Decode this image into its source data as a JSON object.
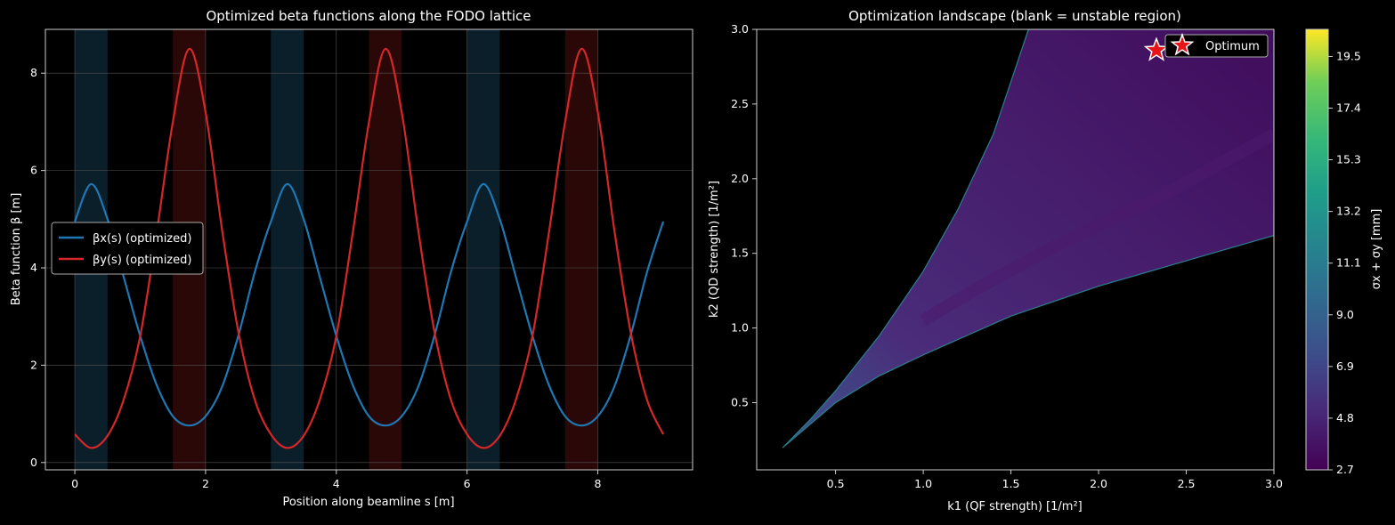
{
  "colors": {
    "background": "#000000",
    "beta_x": "#1f77b4",
    "beta_y": "#d62728",
    "qf_band": "#0b1f2a",
    "qd_band": "#2a0808",
    "grid": "#555555",
    "star": "#e8141a"
  },
  "chart_data": [
    {
      "type": "line",
      "title": "Optimized beta functions along the FODO lattice",
      "xlabel": "Position along beamline s [m]",
      "ylabel": "Beta function β [m]",
      "xlim": [
        -0.45,
        9.45
      ],
      "ylim": [
        -0.15,
        8.9
      ],
      "xticks": [
        0,
        2,
        4,
        6,
        8
      ],
      "yticks": [
        0,
        2,
        4,
        6,
        8
      ],
      "grid": true,
      "legend_position": "center-left",
      "cell_length": 3,
      "qf_regions": [
        [
          0,
          0.5
        ],
        [
          3,
          3.5
        ],
        [
          6,
          6.5
        ]
      ],
      "qd_regions": [
        [
          1.5,
          2.0
        ],
        [
          4.5,
          5.0
        ],
        [
          7.5,
          8.0
        ]
      ],
      "series": [
        {
          "name": "βx(s) (optimized)",
          "color": "#1f77b4",
          "x": [
            0,
            0.25,
            0.5,
            0.75,
            1.0,
            1.25,
            1.5,
            1.75,
            2.0,
            2.25,
            2.5,
            2.75,
            3.0
          ],
          "values": [
            4.95,
            5.72,
            5.0,
            3.8,
            2.6,
            1.6,
            0.95,
            0.76,
            0.95,
            1.55,
            2.6,
            3.9,
            4.95
          ]
        },
        {
          "name": "βy(s) (optimized)",
          "color": "#d62728",
          "x": [
            0,
            0.25,
            0.5,
            0.75,
            1.0,
            1.25,
            1.5,
            1.75,
            2.0,
            2.25,
            2.5,
            2.75,
            3.0
          ],
          "values": [
            0.58,
            0.3,
            0.55,
            1.3,
            2.6,
            4.7,
            7.0,
            8.5,
            7.2,
            4.8,
            2.7,
            1.3,
            0.58
          ]
        }
      ]
    },
    {
      "type": "heatmap",
      "title": "Optimization landscape (blank = unstable region)",
      "xlabel": "k1 (QF strength) [1/m²]",
      "ylabel": "k2 (QD strength) [1/m²]",
      "xlim": [
        0.05,
        3.0
      ],
      "ylim": [
        0.05,
        3.0
      ],
      "xticks": [
        "0.5",
        "1.0",
        "1.5",
        "2.0",
        "2.5",
        "3.0"
      ],
      "yticks": [
        "0.5",
        "1.0",
        "1.5",
        "2.0",
        "2.5",
        "3.0"
      ],
      "colorbar_label": "σx + σy [mm]",
      "colorbar_ticks": [
        "2.7",
        "4.8",
        "6.9",
        "9.0",
        "11.1",
        "13.2",
        "15.3",
        "17.4",
        "19.5"
      ],
      "colorbar_range": [
        2.7,
        20.6
      ],
      "stable_region_upper": {
        "k1": [
          0.2,
          0.35,
          0.5,
          0.75,
          1.0,
          1.2,
          1.4,
          1.5,
          1.6
        ],
        "k2": [
          0.2,
          0.38,
          0.58,
          0.95,
          1.38,
          1.8,
          2.3,
          2.65,
          3.0
        ]
      },
      "stable_region_lower": {
        "k1": [
          0.2,
          0.35,
          0.5,
          0.75,
          1.0,
          1.25,
          1.5,
          1.75,
          2.0,
          2.5,
          3.0
        ],
        "k2": [
          0.2,
          0.35,
          0.5,
          0.68,
          0.82,
          0.95,
          1.08,
          1.18,
          1.28,
          1.45,
          1.62
        ]
      },
      "optimum": {
        "name": "Optimum",
        "k1": 2.33,
        "k2": 2.86
      },
      "legend_position": "top-right"
    }
  ]
}
